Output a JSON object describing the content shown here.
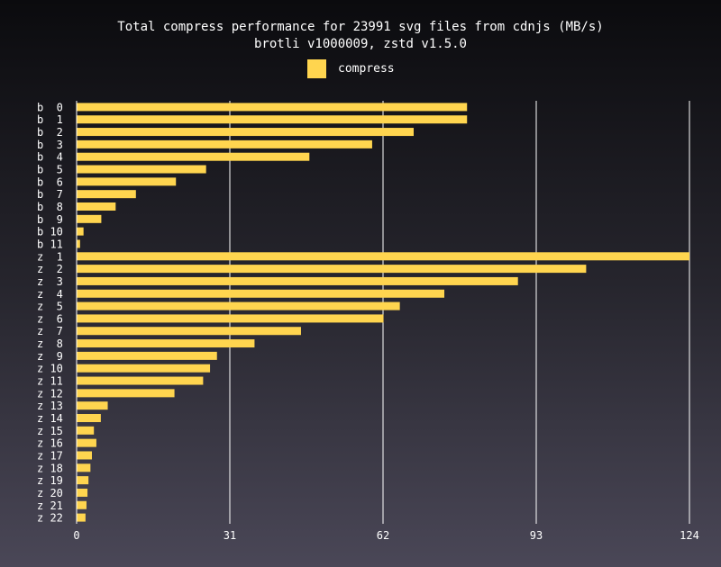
{
  "chart_data": {
    "type": "bar",
    "orientation": "horizontal",
    "title": "Total compress performance for 23991 svg files from cdnjs (MB/s)",
    "subtitle": "brotli v1000009, zstd v1.5.0",
    "xlim": [
      0,
      124
    ],
    "xticks": [
      0,
      31,
      62,
      93,
      124
    ],
    "grid": true,
    "legend_position": "top-center",
    "bar_color": "#ffd54f",
    "categories": [
      "b  0",
      "b  1",
      "b  2",
      "b  3",
      "b  4",
      "b  5",
      "b  6",
      "b  7",
      "b  8",
      "b  9",
      "b 10",
      "b 11",
      "z  1",
      "z  2",
      "z  3",
      "z  4",
      "z  5",
      "z  6",
      "z  7",
      "z  8",
      "z  9",
      "z 10",
      "z 11",
      "z 12",
      "z 13",
      "z 14",
      "z 15",
      "z 16",
      "z 17",
      "z 18",
      "z 19",
      "z 20",
      "z 21",
      "z 22"
    ],
    "series": [
      {
        "name": "compress",
        "values": [
          79,
          79,
          68.2,
          59.8,
          47.1,
          26.2,
          20.1,
          12,
          7.9,
          5,
          1.4,
          0.7,
          124,
          103.1,
          89.3,
          74.4,
          65.4,
          62.1,
          45.4,
          36,
          28.4,
          27,
          25.6,
          19.8,
          6.3,
          4.9,
          3.5,
          4,
          3.1,
          2.8,
          2.4,
          2.2,
          2,
          1.8
        ]
      }
    ]
  }
}
